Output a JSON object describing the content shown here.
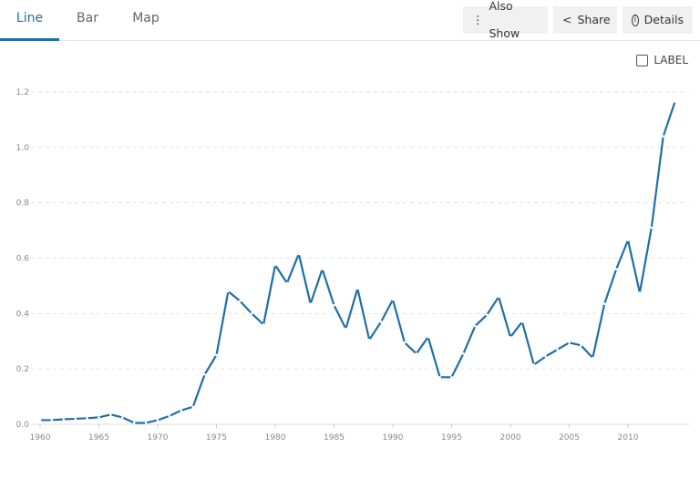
{
  "tabs": [
    {
      "label": "Line"
    },
    {
      "label": "Bar"
    },
    {
      "label": "Map"
    }
  ],
  "actions": {
    "also_show": "Also Show",
    "share": "Share",
    "details": "Details"
  },
  "label_toggle": "LABEL",
  "chart_data": {
    "type": "line",
    "title": "",
    "xlabel": "",
    "ylabel": "",
    "color": "#1f6fa6",
    "x": [
      1960,
      1961,
      1962,
      1963,
      1964,
      1965,
      1966,
      1967,
      1968,
      1969,
      1970,
      1971,
      1972,
      1973,
      1974,
      1975,
      1976,
      1977,
      1978,
      1979,
      1980,
      1981,
      1982,
      1983,
      1984,
      1985,
      1986,
      1987,
      1988,
      1989,
      1990,
      1991,
      1992,
      1993,
      1994,
      1995,
      1996,
      1997,
      1998,
      1999,
      2000,
      2001,
      2002,
      2003,
      2004,
      2005,
      2006,
      2007,
      2008,
      2009,
      2010,
      2011,
      2012,
      2013,
      2014
    ],
    "values": [
      0.015,
      0.015,
      0.018,
      0.02,
      0.022,
      0.025,
      0.035,
      0.025,
      0.005,
      0.005,
      0.015,
      0.03,
      0.05,
      0.063,
      0.18,
      0.25,
      0.48,
      0.445,
      0.4,
      0.36,
      0.575,
      0.51,
      0.615,
      0.435,
      0.56,
      0.43,
      0.345,
      0.49,
      0.305,
      0.37,
      0.45,
      0.295,
      0.255,
      0.315,
      0.17,
      0.17,
      0.255,
      0.355,
      0.395,
      0.46,
      0.315,
      0.37,
      0.215,
      0.245,
      0.27,
      0.295,
      0.285,
      0.24,
      0.435,
      0.56,
      0.665,
      0.475,
      0.71,
      1.04,
      1.165
    ],
    "xticks": [
      1960,
      1965,
      1970,
      1975,
      1980,
      1985,
      1990,
      1995,
      2000,
      2005,
      2010
    ],
    "yticks": [
      "0.0",
      "0.2",
      "0.4",
      "0.6",
      "0.8",
      "1.0",
      "1.2"
    ],
    "xlim": [
      1960,
      2014
    ],
    "ylim": [
      0,
      1.2
    ],
    "grid": true,
    "legend": "none"
  }
}
